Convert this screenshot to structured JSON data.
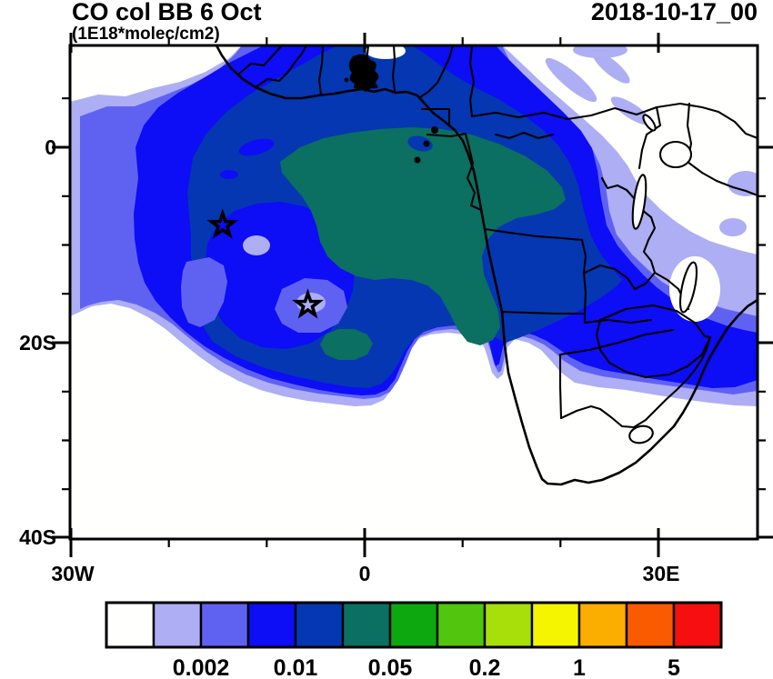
{
  "header": {
    "title": "CO col BB 6 Oct",
    "subtitle": "(1E18*molec/cm2)",
    "timestamp": "2018-10-17_00"
  },
  "axes": {
    "y_ticks": [
      {
        "label": "0",
        "lat": 0
      },
      {
        "label": "20S",
        "lat": -20
      },
      {
        "label": "40S",
        "lat": -40
      }
    ],
    "x_ticks": [
      {
        "label": "30W",
        "lon": -30
      },
      {
        "label": "0",
        "lon": 0
      },
      {
        "label": "30E",
        "lon": 30
      }
    ],
    "lon_range_deg": [
      -30.1,
      40.1
    ],
    "lat_range_deg": [
      -40.3,
      10.4
    ]
  },
  "colorbar": {
    "colors": [
      "#FFFFFE",
      "#ADAEF4",
      "#5F62F1",
      "#0D0DF6",
      "#0537B2",
      "#0B6F62",
      "#0DA80F",
      "#52C60F",
      "#A8DF0A",
      "#F5F500",
      "#FCAE00",
      "#FA5A00",
      "#F50F0F"
    ],
    "levels": [
      0.001,
      0.002,
      0.005,
      0.01,
      0.02,
      0.05,
      0.1,
      0.2,
      0.5,
      1,
      2,
      5
    ],
    "tick_labels": [
      "0.002",
      "0.01",
      "0.05",
      "0.2",
      "1",
      "5"
    ]
  },
  "markers": {
    "stars": [
      {
        "name": "star-marker-west",
        "lon": -14.5,
        "lat": -8.0
      },
      {
        "name": "star-marker-east",
        "lon": -5.8,
        "lat": -16.2
      }
    ]
  },
  "chart_data": {
    "type": "contour_map",
    "title": "CO col BB 6 Oct",
    "units": "1E18*molec/cm2",
    "timestamp": "2018-10-17_00",
    "projection": "cylindrical lat-lon over Africa / South Atlantic",
    "lon_range_deg": [
      -30.1,
      40.1
    ],
    "lat_range_deg": [
      -40.3,
      10.4
    ],
    "contour_levels": [
      0.001,
      0.002,
      0.005,
      0.01,
      0.02,
      0.05,
      0.1,
      0.2,
      0.5,
      1,
      2,
      5
    ],
    "labeled_levels": [
      "0.002",
      "0.01",
      "0.05",
      "0.2",
      "1",
      "5"
    ],
    "palette": [
      "#FFFFFE",
      "#ADAEF4",
      "#5F62F1",
      "#0D0DF6",
      "#0537B2",
      "#0B6F62",
      "#0DA80F",
      "#52C60F",
      "#A8DF0A",
      "#F5F500",
      "#FCAE00",
      "#FA5A00",
      "#F50F0F"
    ],
    "max_filled_level_range": [
      0.02,
      0.05
    ],
    "plume_description": "Broad biomass-burning CO plume covering the Gulf of Guinea, Congo basin, Angola and the tropical South Atlantic; peak band (0.02-0.05) centered near the equatorial Atlantic / Central African coast, decreasing outward through 0.01, 0.005, 0.002 and 0.001 shells; clean (white) areas over the NW Atlantic corner, NE Africa and southern Africa south of ~25S.",
    "star_markers_lonlat": [
      [
        -14.5,
        -8.0
      ],
      [
        -5.8,
        -16.2
      ]
    ],
    "axis_tick_labels": {
      "x": [
        "30W",
        "0",
        "30E"
      ],
      "y": [
        "0",
        "20S",
        "40S"
      ]
    },
    "grid": false,
    "colorbar_position": "bottom"
  }
}
